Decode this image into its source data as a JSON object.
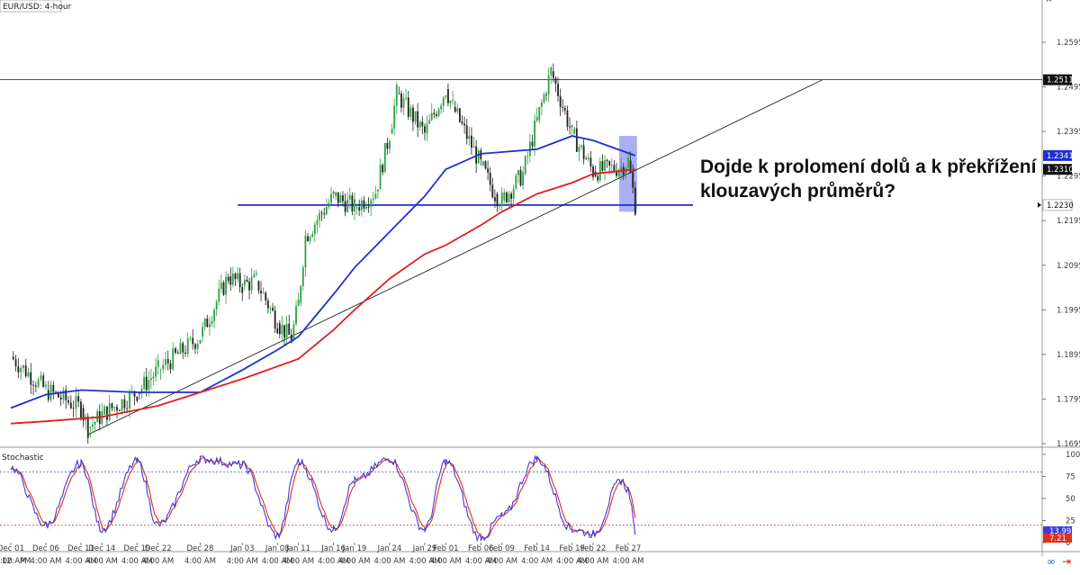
{
  "header": {
    "symbol_label": "EUR/USD: 4-hour"
  },
  "annotation": {
    "question": "Dojde k prolomení dolů a k překřížení klouzavých průměrů?"
  },
  "indicator": {
    "title": "Stochastic"
  },
  "footer": {
    "timeframe_label": "12:",
    "pm_label": "PM"
  },
  "colors": {
    "up_candle": "#2ea043",
    "down_candle": "#222222",
    "ma_fast": "#1f2fd0",
    "ma_slow": "#e0201a",
    "support_line": "#2030c8",
    "trend_line": "#222222",
    "highlight": "#8f95f0",
    "stoch_k": "#3a3adf",
    "stoch_d": "#e0301a",
    "last_price_box": "#111111"
  },
  "chart_data": {
    "type": "candlestick",
    "title": "EUR/USD: 4-hour",
    "y_ticks": [
      "1.2595",
      "1.2495",
      "1.2395",
      "1.2295",
      "1.2195",
      "1.2095",
      "1.1995",
      "1.1895",
      "1.1795",
      "1.1695"
    ],
    "ylim": [
      1.1695,
      1.2645
    ],
    "price_labels": [
      {
        "value": 1.2511,
        "text": "1.2511",
        "style": "dark"
      },
      {
        "value": 1.2341,
        "text": "1.2341",
        "style": "blue"
      },
      {
        "value": 1.231,
        "text": "1.2310",
        "style": "dark"
      },
      {
        "value": 1.223,
        "text": "1.2230",
        "style": "light"
      }
    ],
    "horizontal_lines": [
      {
        "name": "resistance",
        "value": 1.2511
      },
      {
        "name": "support",
        "value": 1.223
      }
    ],
    "trend_line": {
      "from": {
        "date": "Dec 12",
        "price": 1.1715
      },
      "to": {
        "date": "Mar 06",
        "price": 1.2511
      }
    },
    "highlight_zone": {
      "from_date": "Feb 27",
      "to_date": "Feb 28",
      "low": 1.2215,
      "high": 1.2385
    },
    "x_ticks": [
      "Dec 01",
      "Dec 06",
      "Dec 11",
      "Dec 14",
      "Dec 19",
      "Dec 22",
      "Dec 28",
      "Jan 03",
      "Jan 08",
      "Jan 11",
      "Jan 16",
      "Jan 19",
      "Jan 24",
      "Jan 29",
      "Feb 01",
      "Feb 06",
      "Feb 09",
      "Feb 14",
      "Feb 19",
      "Feb 22",
      "Feb 27"
    ],
    "x_sub_label": "4:00 AM",
    "close_path": [
      {
        "date": "Dec 01",
        "close": 1.189
      },
      {
        "date": "Dec 06",
        "close": 1.1815
      },
      {
        "date": "Dec 11",
        "close": 1.1775
      },
      {
        "date": "Dec 12",
        "close": 1.173
      },
      {
        "date": "Dec 14",
        "close": 1.176
      },
      {
        "date": "Dec 19",
        "close": 1.181
      },
      {
        "date": "Dec 22",
        "close": 1.186
      },
      {
        "date": "Dec 28",
        "close": 1.1935
      },
      {
        "date": "Jan 01",
        "close": 1.207
      },
      {
        "date": "Jan 03",
        "close": 1.205
      },
      {
        "date": "Jan 05",
        "close": 1.206
      },
      {
        "date": "Jan 08",
        "close": 1.1965
      },
      {
        "date": "Jan 10",
        "close": 1.193
      },
      {
        "date": "Jan 11",
        "close": 1.201
      },
      {
        "date": "Jan 12",
        "close": 1.216
      },
      {
        "date": "Jan 16",
        "close": 1.225
      },
      {
        "date": "Jan 19",
        "close": 1.2225
      },
      {
        "date": "Jan 22",
        "close": 1.226
      },
      {
        "date": "Jan 24",
        "close": 1.239
      },
      {
        "date": "Jan 25",
        "close": 1.248
      },
      {
        "date": "Jan 29",
        "close": 1.239
      },
      {
        "date": "Feb 01",
        "close": 1.249
      },
      {
        "date": "Feb 02",
        "close": 1.245
      },
      {
        "date": "Feb 06",
        "close": 1.232
      },
      {
        "date": "Feb 08",
        "close": 1.2255
      },
      {
        "date": "Feb 09",
        "close": 1.224
      },
      {
        "date": "Feb 12",
        "close": 1.23
      },
      {
        "date": "Feb 14",
        "close": 1.242
      },
      {
        "date": "Feb 16",
        "close": 1.253
      },
      {
        "date": "Feb 19",
        "close": 1.239
      },
      {
        "date": "Feb 22",
        "close": 1.2305
      },
      {
        "date": "Feb 26",
        "close": 1.2315
      },
      {
        "date": "Feb 27",
        "close": 1.233
      },
      {
        "date": "Feb 28",
        "close": 1.223
      }
    ],
    "moving_averages": [
      {
        "name": "fast",
        "color": "#1f2fd0",
        "points": [
          {
            "date": "Dec 01",
            "value": 1.1775
          },
          {
            "date": "Dec 06",
            "value": 1.1805
          },
          {
            "date": "Dec 11",
            "value": 1.1815
          },
          {
            "date": "Dec 19",
            "value": 1.181
          },
          {
            "date": "Dec 28",
            "value": 1.181
          },
          {
            "date": "Jan 03",
            "value": 1.186
          },
          {
            "date": "Jan 08",
            "value": 1.1905
          },
          {
            "date": "Jan 11",
            "value": 1.1935
          },
          {
            "date": "Jan 16",
            "value": 1.203
          },
          {
            "date": "Jan 19",
            "value": 1.209
          },
          {
            "date": "Jan 24",
            "value": 1.217
          },
          {
            "date": "Jan 29",
            "value": 1.225
          },
          {
            "date": "Feb 01",
            "value": 1.231
          },
          {
            "date": "Feb 06",
            "value": 1.2345
          },
          {
            "date": "Feb 14",
            "value": 1.2355
          },
          {
            "date": "Feb 19",
            "value": 1.2385
          },
          {
            "date": "Feb 22",
            "value": 1.2375
          },
          {
            "date": "Feb 28",
            "value": 1.2341
          }
        ]
      },
      {
        "name": "slow",
        "color": "#e0201a",
        "points": [
          {
            "date": "Dec 01",
            "value": 1.174
          },
          {
            "date": "Dec 06",
            "value": 1.1745
          },
          {
            "date": "Dec 14",
            "value": 1.1755
          },
          {
            "date": "Dec 22",
            "value": 1.178
          },
          {
            "date": "Jan 03",
            "value": 1.184
          },
          {
            "date": "Jan 11",
            "value": 1.1885
          },
          {
            "date": "Jan 16",
            "value": 1.195
          },
          {
            "date": "Jan 19",
            "value": 1.1995
          },
          {
            "date": "Jan 24",
            "value": 1.2065
          },
          {
            "date": "Jan 29",
            "value": 1.212
          },
          {
            "date": "Feb 01",
            "value": 1.214
          },
          {
            "date": "Feb 06",
            "value": 1.2185
          },
          {
            "date": "Feb 09",
            "value": 1.2215
          },
          {
            "date": "Feb 14",
            "value": 1.2255
          },
          {
            "date": "Feb 19",
            "value": 1.228
          },
          {
            "date": "Feb 22",
            "value": 1.23
          },
          {
            "date": "Feb 28",
            "value": 1.231
          }
        ]
      }
    ],
    "stochastic": {
      "ylim": [
        0,
        100
      ],
      "y_ticks": [
        "100",
        "75",
        "50",
        "25",
        "0"
      ],
      "levels": [
        80,
        20
      ],
      "last_values": [
        {
          "text": "13.99",
          "style": "blue"
        },
        {
          "text": "7.21",
          "style": "red"
        }
      ],
      "k_path": [
        {
          "date": "Dec 01",
          "value": 85
        },
        {
          "date": "Dec 06",
          "value": 20
        },
        {
          "date": "Dec 11",
          "value": 90
        },
        {
          "date": "Dec 14",
          "value": 15
        },
        {
          "date": "Dec 19",
          "value": 92
        },
        {
          "date": "Dec 22",
          "value": 20
        },
        {
          "date": "Dec 28",
          "value": 95
        },
        {
          "date": "Jan 03",
          "value": 88
        },
        {
          "date": "Jan 08",
          "value": 8
        },
        {
          "date": "Jan 11",
          "value": 92
        },
        {
          "date": "Jan 16",
          "value": 15
        },
        {
          "date": "Jan 19",
          "value": 70
        },
        {
          "date": "Jan 24",
          "value": 95
        },
        {
          "date": "Jan 29",
          "value": 15
        },
        {
          "date": "Feb 01",
          "value": 92
        },
        {
          "date": "Feb 06",
          "value": 5
        },
        {
          "date": "Feb 09",
          "value": 30
        },
        {
          "date": "Feb 14",
          "value": 95
        },
        {
          "date": "Feb 19",
          "value": 15
        },
        {
          "date": "Feb 22",
          "value": 10
        },
        {
          "date": "Feb 26",
          "value": 70
        },
        {
          "date": "Feb 27",
          "value": 60
        },
        {
          "date": "Feb 28",
          "value": 14
        }
      ]
    }
  }
}
